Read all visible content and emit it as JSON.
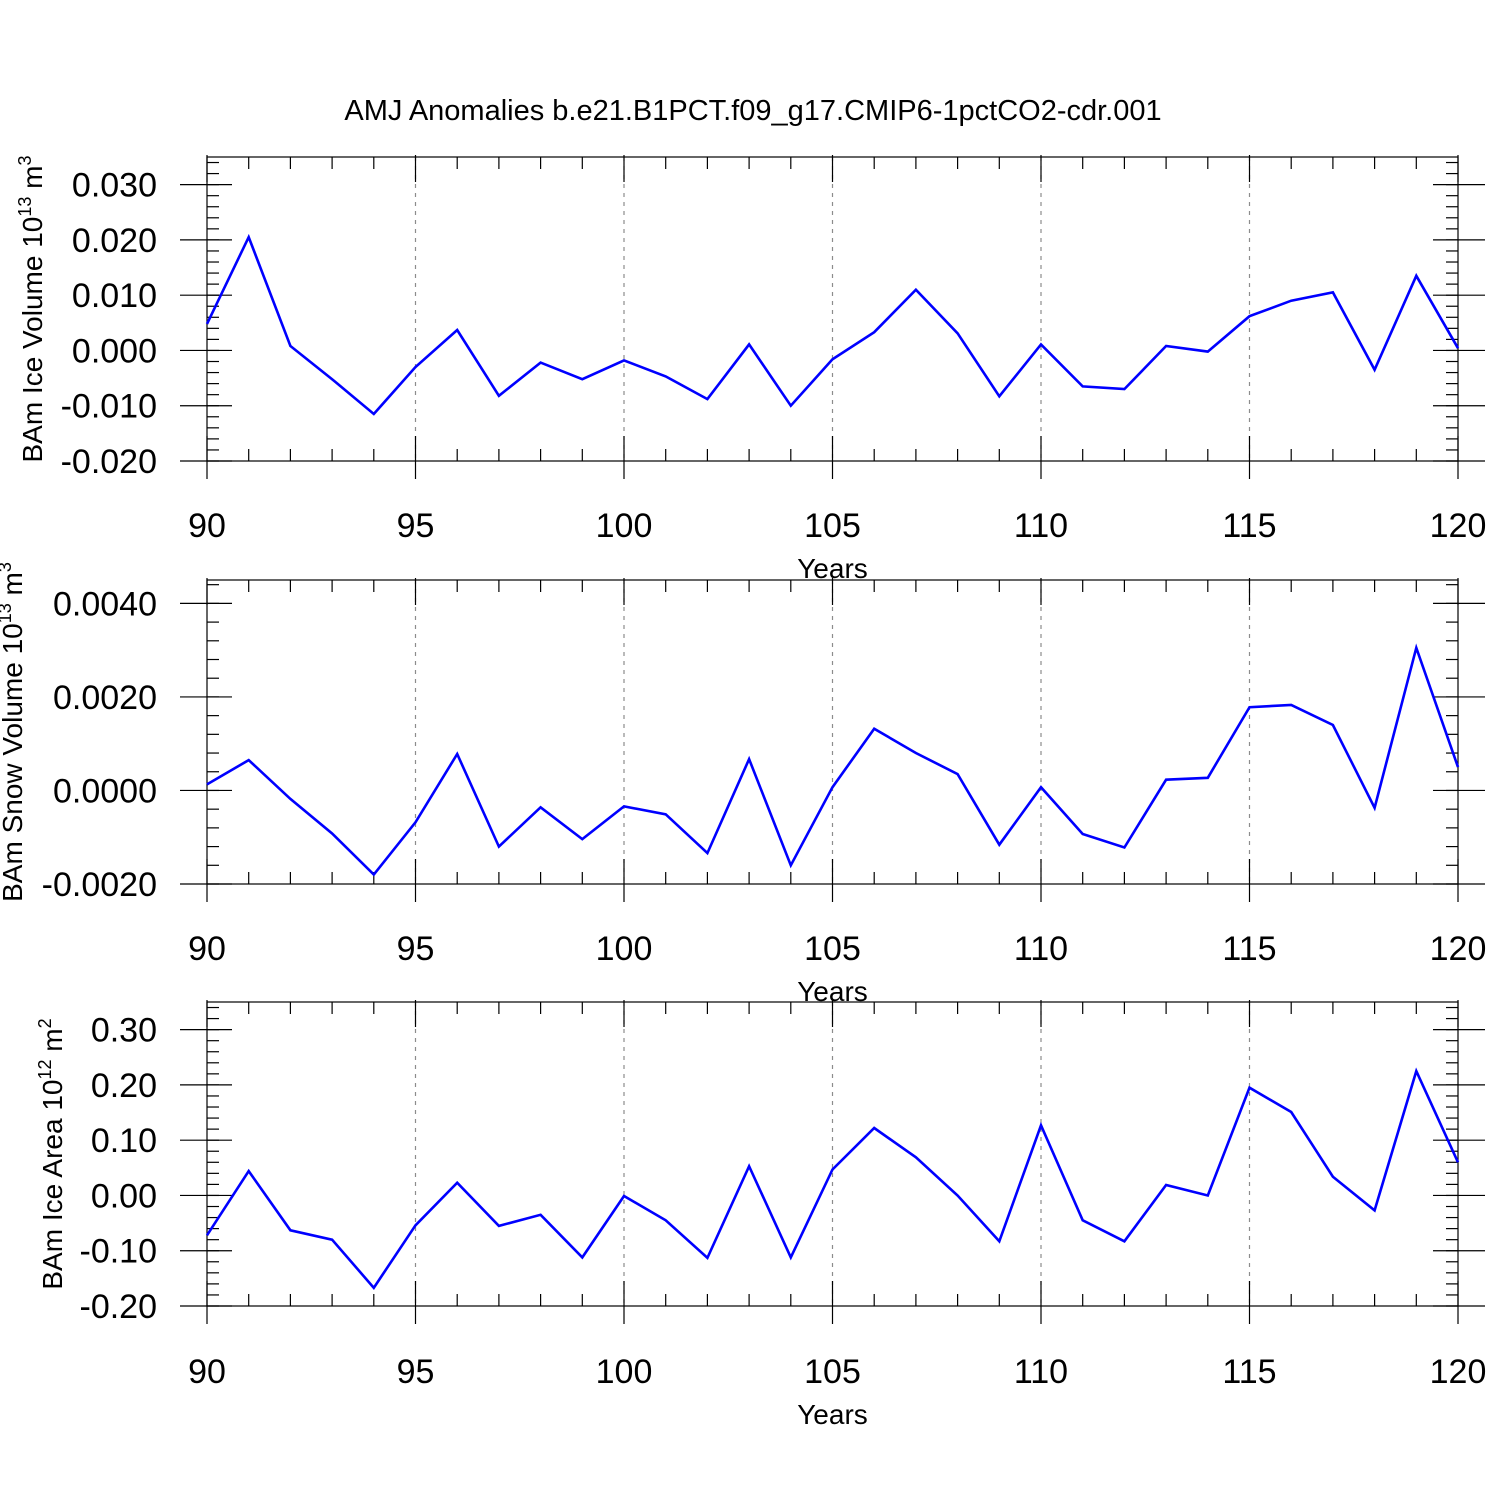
{
  "title": "AMJ Anomalies b.e21.B1PCT.f09_g17.CMIP6-1pctCO2-cdr.001",
  "colors": {
    "series": "#0000ff",
    "axis": "#000000",
    "grid": "#8c8c8c"
  },
  "chart_data": [
    {
      "type": "line",
      "ylabel": "BAm Ice Volume 10",
      "ylabel_exponent": "13",
      "ylabel_unit": "m",
      "ylabel_unit_exponent": "3",
      "xlabel": "Years",
      "xlim": [
        90,
        120
      ],
      "ylim": [
        -0.02,
        0.035
      ],
      "x_ticks": [
        90,
        95,
        100,
        105,
        110,
        115,
        120
      ],
      "x_tick_labels": [
        "90",
        "95",
        "100",
        "105",
        "110",
        "115",
        "120"
      ],
      "y_ticks": [
        -0.02,
        -0.01,
        0.0,
        0.01,
        0.02,
        0.03
      ],
      "y_tick_labels": [
        "-0.020",
        "-0.010",
        "0.000",
        "0.010",
        "0.020",
        "0.030"
      ],
      "grid": "vertical dashed at major x ticks",
      "x": [
        90,
        91,
        92,
        93,
        94,
        95,
        96,
        97,
        98,
        99,
        100,
        101,
        102,
        103,
        104,
        105,
        106,
        107,
        108,
        109,
        110,
        111,
        112,
        113,
        114,
        115,
        116,
        117,
        118,
        119,
        120
      ],
      "series": [
        {
          "values": [
            0.0048,
            0.0205,
            0.0008,
            -0.0052,
            -0.0115,
            -0.003,
            0.0037,
            -0.0082,
            -0.0022,
            -0.0052,
            -0.0018,
            -0.0047,
            -0.0088,
            0.0011,
            -0.01,
            -0.0016,
            0.0033,
            0.011,
            0.0031,
            -0.0083,
            0.0011,
            -0.0065,
            -0.007,
            0.0008,
            -0.0002,
            0.0062,
            0.009,
            0.0105,
            -0.0035,
            0.0135,
            0.0004
          ]
        }
      ]
    },
    {
      "type": "line",
      "ylabel": "BAm Snow Volume 10",
      "ylabel_exponent": "13",
      "ylabel_unit": "m",
      "ylabel_unit_exponent": "3",
      "xlabel": "Years",
      "xlim": [
        90,
        120
      ],
      "ylim": [
        -0.002,
        0.0045
      ],
      "x_ticks": [
        90,
        95,
        100,
        105,
        110,
        115,
        120
      ],
      "x_tick_labels": [
        "90",
        "95",
        "100",
        "105",
        "110",
        "115",
        "120"
      ],
      "y_ticks": [
        -0.002,
        0.0,
        0.002,
        0.004
      ],
      "y_tick_labels": [
        "-0.0020",
        "0.0000",
        "0.0020",
        "0.0040"
      ],
      "grid": "vertical dashed at major x ticks",
      "x": [
        90,
        91,
        92,
        93,
        94,
        95,
        96,
        97,
        98,
        99,
        100,
        101,
        102,
        103,
        104,
        105,
        106,
        107,
        108,
        109,
        110,
        111,
        112,
        113,
        114,
        115,
        116,
        117,
        118,
        119,
        120
      ],
      "series": [
        {
          "values": [
            0.00013,
            0.00065,
            -0.00018,
            -0.00092,
            -0.0018,
            -0.00068,
            0.00078,
            -0.0012,
            -0.00036,
            -0.00104,
            -0.00034,
            -0.00051,
            -0.00134,
            0.00067,
            -0.0016,
            7e-05,
            0.00132,
            0.0008,
            0.00035,
            -0.00116,
            7e-05,
            -0.00093,
            -0.00122,
            0.00023,
            0.00027,
            0.00178,
            0.00183,
            0.0014,
            -0.00037,
            0.00305,
            0.0005
          ]
        }
      ]
    },
    {
      "type": "line",
      "ylabel": "BAm Ice Area 10",
      "ylabel_exponent": "12",
      "ylabel_unit": "m",
      "ylabel_unit_exponent": "2",
      "xlabel": "Years",
      "xlim": [
        90,
        120
      ],
      "ylim": [
        -0.2,
        0.35
      ],
      "x_ticks": [
        90,
        95,
        100,
        105,
        110,
        115,
        120
      ],
      "x_tick_labels": [
        "90",
        "95",
        "100",
        "105",
        "110",
        "115",
        "120"
      ],
      "y_ticks": [
        -0.2,
        -0.1,
        0.0,
        0.1,
        0.2,
        0.3
      ],
      "y_tick_labels": [
        "-0.20",
        "-0.10",
        "0.00",
        "0.10",
        "0.20",
        "0.30"
      ],
      "grid": "vertical dashed at major x ticks",
      "x": [
        90,
        91,
        92,
        93,
        94,
        95,
        96,
        97,
        98,
        99,
        100,
        101,
        102,
        103,
        104,
        105,
        106,
        107,
        108,
        109,
        110,
        111,
        112,
        113,
        114,
        115,
        116,
        117,
        118,
        119,
        120
      ],
      "series": [
        {
          "values": [
            -0.072,
            0.044,
            -0.063,
            -0.08,
            -0.167,
            -0.054,
            0.023,
            -0.055,
            -0.035,
            -0.112,
            -0.001,
            -0.045,
            -0.113,
            0.053,
            -0.112,
            0.047,
            0.122,
            0.069,
            0.0,
            -0.083,
            0.127,
            -0.045,
            -0.083,
            0.019,
            0.0,
            0.195,
            0.151,
            0.034,
            -0.027,
            0.225,
            0.06
          ]
        }
      ]
    }
  ]
}
